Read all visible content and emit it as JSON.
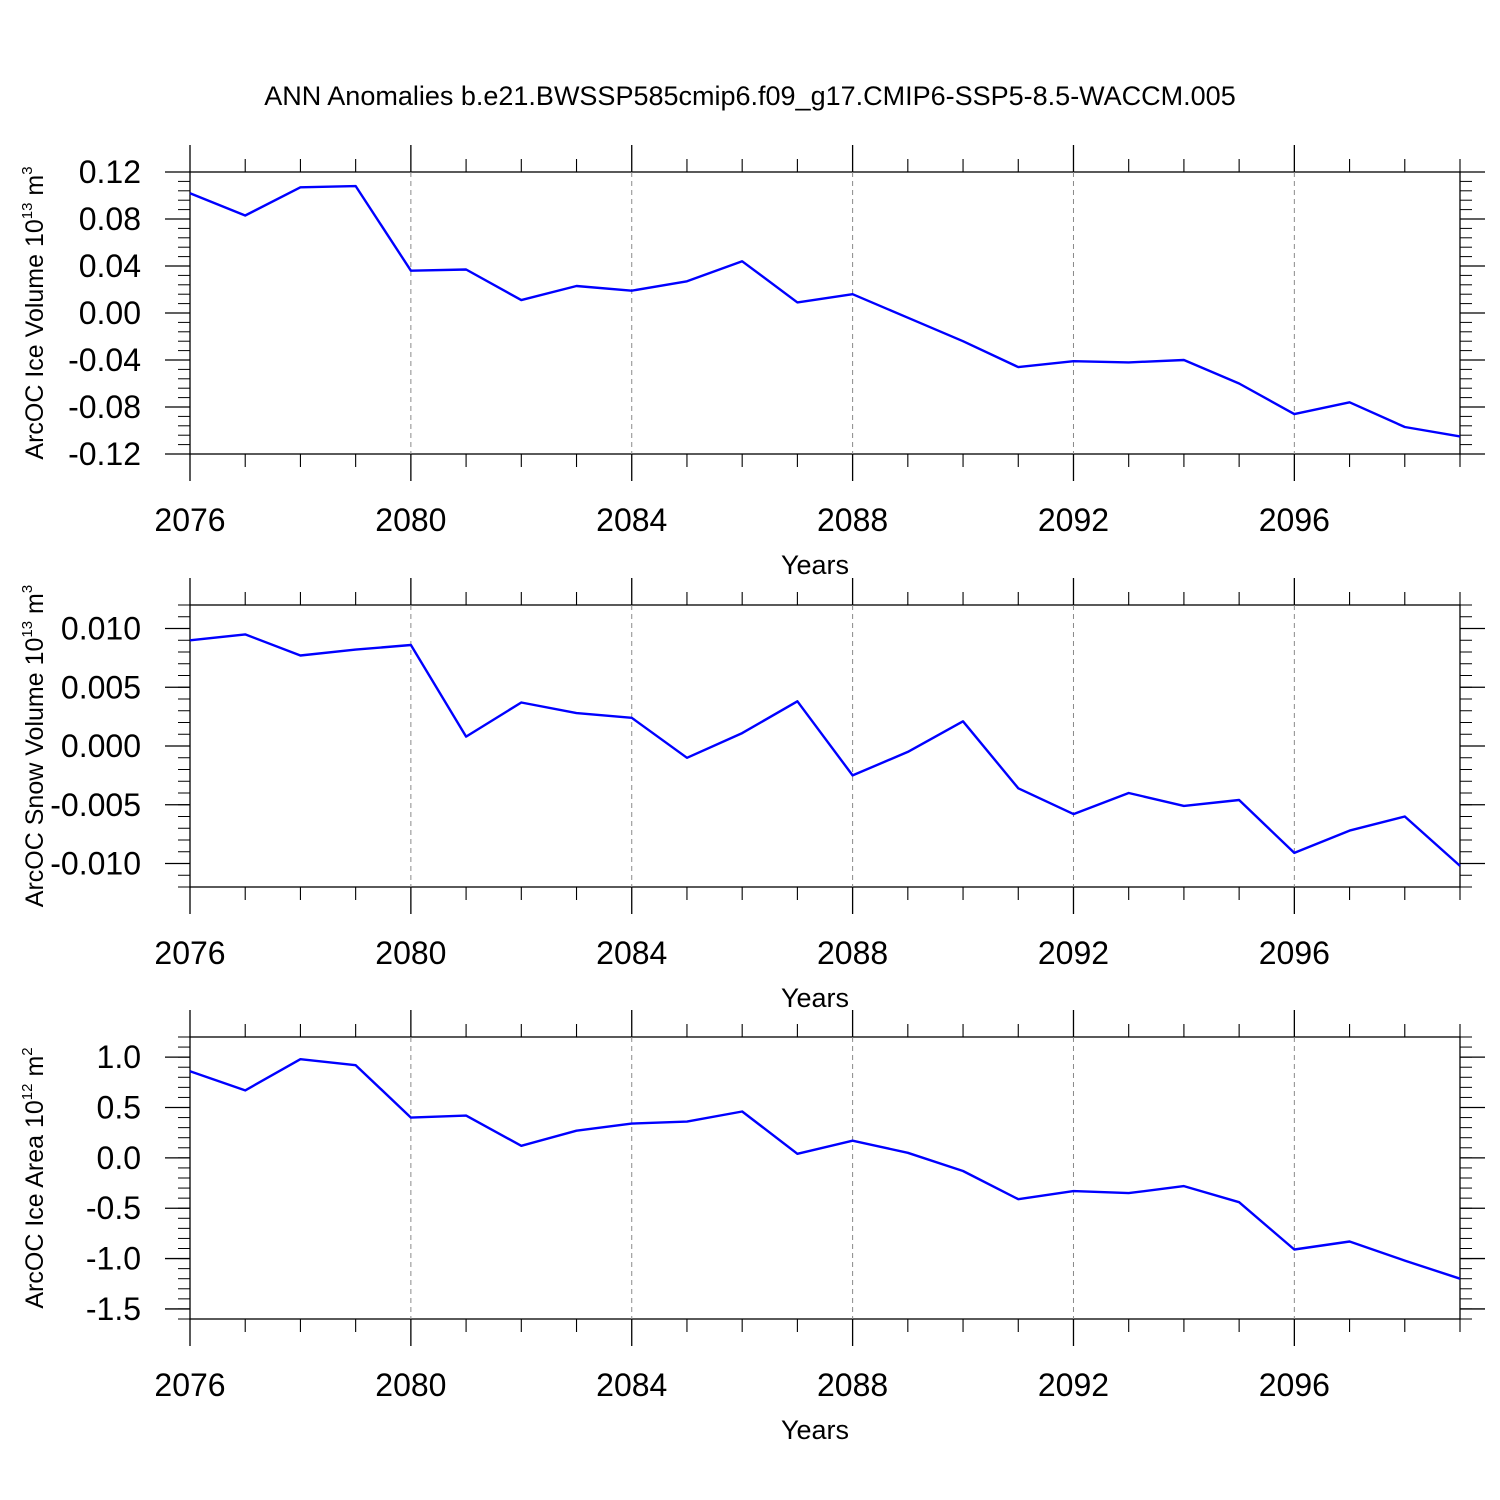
{
  "figure": {
    "title": "ANN Anomalies b.e21.BWSSP585cmip6.f09_g17.CMIP6-SSP5-8.5-WACCM.005"
  },
  "chart_data": [
    {
      "type": "line",
      "title": "",
      "xlabel": "Years",
      "ylabel": {
        "base": "ArcOC Ice Volume 10",
        "exp": "13",
        "unit": " m",
        "unit_exp": "3"
      },
      "xlim": [
        2076,
        2099
      ],
      "ylim": [
        -0.12,
        0.12
      ],
      "x_ticks": [
        2076,
        2080,
        2084,
        2088,
        2092,
        2096
      ],
      "x_tick_labels": [
        "2076",
        "2080",
        "2084",
        "2088",
        "2092",
        "2096"
      ],
      "y_ticks": [
        0.12,
        0.08,
        0.04,
        0.0,
        -0.04,
        -0.08,
        -0.12
      ],
      "y_tick_labels": [
        "0.12",
        "0.08",
        "0.04",
        "0.00",
        "-0.04",
        "-0.08",
        "-0.12"
      ],
      "y_minor_step": 0.008,
      "grid": "vertical dashed at x ticks",
      "line_color": "#0000ff",
      "series": [
        {
          "name": "ArcOC Ice Volume",
          "x": [
            2076,
            2077,
            2078,
            2079,
            2080,
            2081,
            2082,
            2083,
            2084,
            2085,
            2086,
            2087,
            2088,
            2089,
            2090,
            2091,
            2092,
            2093,
            2094,
            2095,
            2096,
            2097,
            2098,
            2099
          ],
          "values": [
            0.102,
            0.083,
            0.107,
            0.108,
            0.036,
            0.037,
            0.011,
            0.023,
            0.019,
            0.027,
            0.044,
            0.009,
            0.016,
            -0.004,
            -0.024,
            -0.046,
            -0.041,
            -0.042,
            -0.04,
            -0.06,
            -0.086,
            -0.076,
            -0.097,
            -0.105
          ]
        }
      ]
    },
    {
      "type": "line",
      "title": "",
      "xlabel": "Years",
      "ylabel": {
        "base": "ArcOC Snow Volume 10",
        "exp": "13",
        "unit": " m",
        "unit_exp": "3"
      },
      "xlim": [
        2076,
        2099
      ],
      "ylim": [
        -0.012,
        0.012
      ],
      "x_ticks": [
        2076,
        2080,
        2084,
        2088,
        2092,
        2096
      ],
      "x_tick_labels": [
        "2076",
        "2080",
        "2084",
        "2088",
        "2092",
        "2096"
      ],
      "y_ticks": [
        0.01,
        0.005,
        0.0,
        -0.005,
        -0.01
      ],
      "y_tick_labels": [
        "0.010",
        "0.005",
        "0.000",
        "-0.005",
        "-0.010"
      ],
      "y_minor_step": 0.001,
      "grid": "vertical dashed at x ticks",
      "line_color": "#0000ff",
      "series": [
        {
          "name": "ArcOC Snow Volume",
          "x": [
            2076,
            2077,
            2078,
            2079,
            2080,
            2081,
            2082,
            2083,
            2084,
            2085,
            2086,
            2087,
            2088,
            2089,
            2090,
            2091,
            2092,
            2093,
            2094,
            2095,
            2096,
            2097,
            2098,
            2099
          ],
          "values": [
            0.009,
            0.0095,
            0.0077,
            0.0082,
            0.0086,
            0.0008,
            0.0037,
            0.0028,
            0.0024,
            -0.001,
            0.0011,
            0.0038,
            -0.0025,
            -0.0005,
            0.0021,
            -0.0036,
            -0.0058,
            -0.004,
            -0.0051,
            -0.0046,
            -0.0091,
            -0.0072,
            -0.006,
            -0.0102
          ]
        }
      ]
    },
    {
      "type": "line",
      "title": "",
      "xlabel": "Years",
      "ylabel": {
        "base": "ArcOC Ice Area 10",
        "exp": "12",
        "unit": " m",
        "unit_exp": "2"
      },
      "xlim": [
        2076,
        2099
      ],
      "ylim": [
        -1.6,
        1.2
      ],
      "x_ticks": [
        2076,
        2080,
        2084,
        2088,
        2092,
        2096
      ],
      "x_tick_labels": [
        "2076",
        "2080",
        "2084",
        "2088",
        "2092",
        "2096"
      ],
      "y_ticks": [
        1.0,
        0.5,
        0.0,
        -0.5,
        -1.0,
        -1.5
      ],
      "y_tick_labels": [
        "1.0",
        "0.5",
        "0.0",
        "-0.5",
        "-1.0",
        "-1.5"
      ],
      "y_minor_step": 0.1,
      "grid": "vertical dashed at x ticks",
      "line_color": "#0000ff",
      "series": [
        {
          "name": "ArcOC Ice Area",
          "x": [
            2076,
            2077,
            2078,
            2079,
            2080,
            2081,
            2082,
            2083,
            2084,
            2085,
            2086,
            2087,
            2088,
            2089,
            2090,
            2091,
            2092,
            2093,
            2094,
            2095,
            2096,
            2097,
            2098,
            2099
          ],
          "values": [
            0.86,
            0.67,
            0.98,
            0.92,
            0.4,
            0.42,
            0.12,
            0.27,
            0.34,
            0.36,
            0.46,
            0.04,
            0.17,
            0.05,
            -0.13,
            -0.41,
            -0.33,
            -0.35,
            -0.28,
            -0.44,
            -0.91,
            -0.83,
            -1.02,
            -1.2
          ]
        }
      ]
    }
  ]
}
